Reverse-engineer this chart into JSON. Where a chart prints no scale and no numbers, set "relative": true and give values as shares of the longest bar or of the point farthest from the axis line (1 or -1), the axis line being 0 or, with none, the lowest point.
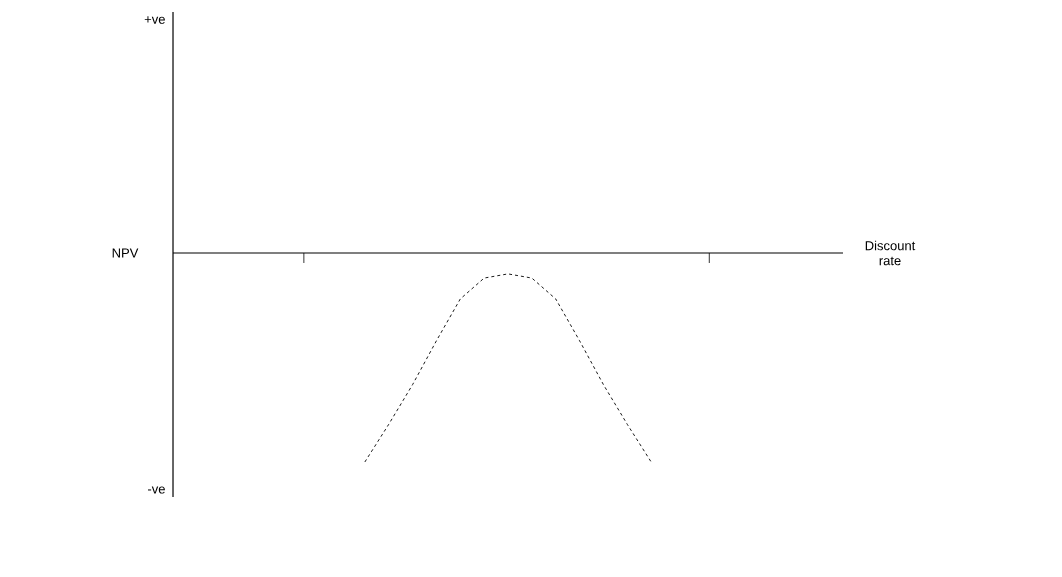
{
  "chart_data": {
    "type": "line",
    "relative": true,
    "categories": [
      null,
      null,
      null,
      null,
      null,
      null,
      null,
      null,
      null,
      null,
      null,
      null,
      null
    ],
    "values": [
      -1,
      -0.82,
      -0.63,
      -0.42,
      -0.22,
      -0.12,
      -0.1,
      -0.12,
      -0.22,
      -0.42,
      -0.63,
      -0.82,
      -1
    ],
    "color": "#000000",
    "line_style": "dashed",
    "marker": "none",
    "annotations": [
      "+ve",
      "-ve",
      "NPV",
      "Discount rate"
    ]
  }
}
